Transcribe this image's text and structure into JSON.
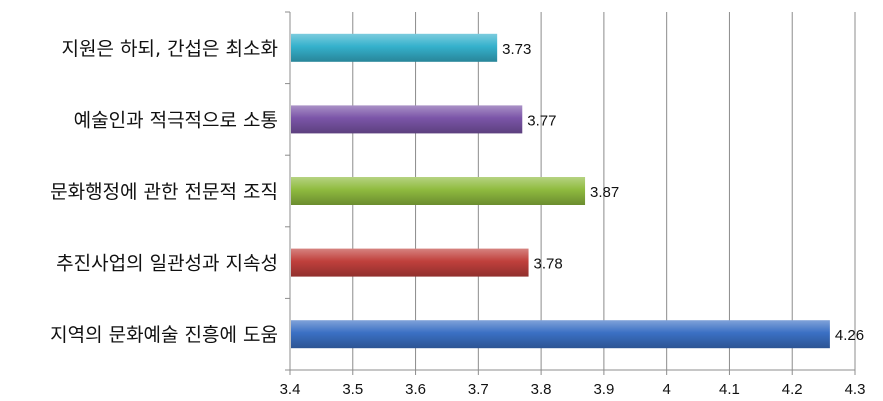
{
  "chart_data": {
    "type": "bar",
    "orientation": "horizontal",
    "categories": [
      "지역의 문화예술 진흥에 도움",
      "추진사업의 일관성과 지속성",
      "문화행정에 관한 전문적 조직",
      "예술인과 적극적으로 소통",
      "지원은 하되, 간섭은 최소화"
    ],
    "values": [
      4.26,
      3.78,
      3.87,
      3.77,
      3.73
    ],
    "value_labels": [
      "4.26",
      "3.78",
      "3.87",
      "3.77",
      "3.73"
    ],
    "bar_colors": [
      "#3b70c4",
      "#c0403c",
      "#8fbb3f",
      "#7b55a8",
      "#35b1cc"
    ],
    "xlim": [
      3.4,
      4.3
    ],
    "x_ticks": [
      "3.4",
      "3.5",
      "3.6",
      "3.7",
      "3.8",
      "3.9",
      "4",
      "4.1",
      "4.2",
      "4.3"
    ],
    "gridlines": "vertical",
    "legend": "none"
  }
}
